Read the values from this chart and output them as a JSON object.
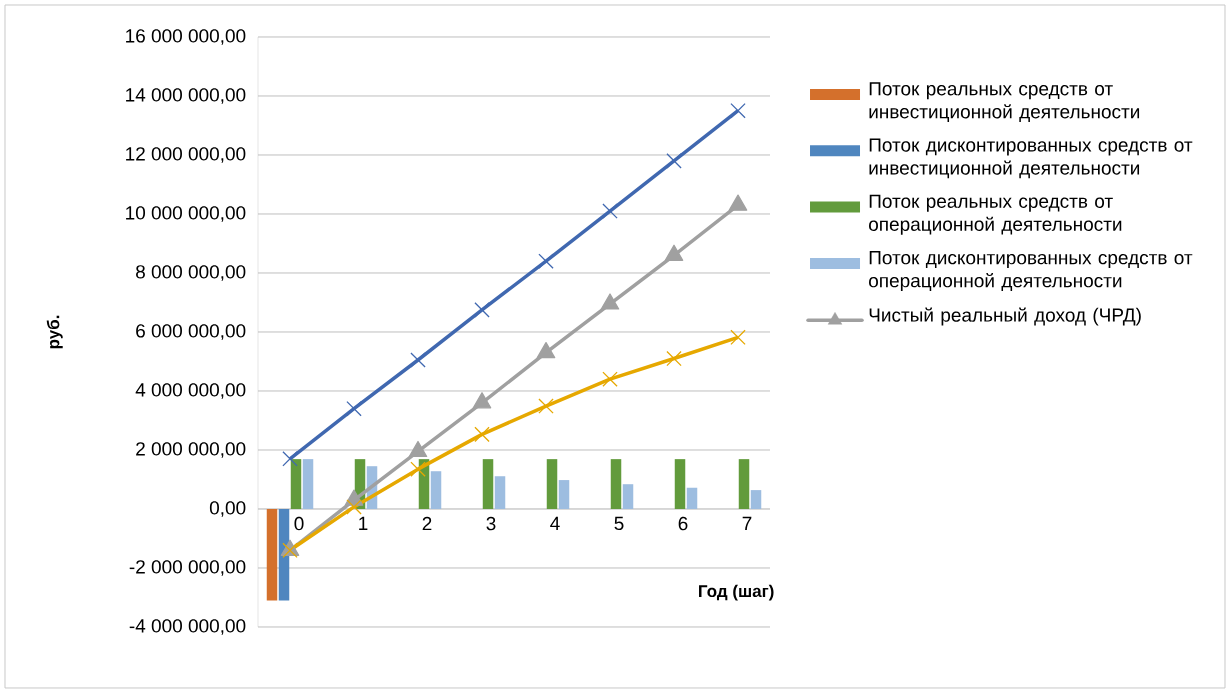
{
  "chart_data": {
    "type": "bar",
    "ylabel": "руб.",
    "xlabel": "Год (шаг)",
    "categories": [
      "0",
      "1",
      "2",
      "3",
      "4",
      "5",
      "6",
      "7"
    ],
    "series": [
      {
        "name": "Поток реальных средств от инвестиционной деятельности",
        "color": "#d4702c",
        "values": [
          -3100000,
          0,
          0,
          0,
          0,
          0,
          0,
          0
        ]
      },
      {
        "name": "Поток дисконтированных средств от инвестиционной деятельности",
        "color": "#4f86bf",
        "values": [
          -3100000,
          0,
          0,
          0,
          0,
          0,
          0,
          0
        ]
      },
      {
        "name": "Поток реальных средств от операционной деятельности",
        "color": "#629b3c",
        "values": [
          1690000,
          1690000,
          1690000,
          1690000,
          1690000,
          1690000,
          1690000,
          1690000
        ]
      },
      {
        "name": "Поток дисконтированных средств от операционной деятельности",
        "color": "#9dbde0",
        "values": [
          1690000,
          1450000,
          1280000,
          1110000,
          980000,
          840000,
          720000,
          640000
        ]
      },
      {
        "type": "line",
        "color": "#4068b0",
        "marker": "cross",
        "values": [
          1700000,
          3400000,
          5050000,
          6750000,
          8400000,
          10100000,
          11800000,
          13500000
        ]
      },
      {
        "name": "Чистый реальный доход (ЧРД)",
        "type": "line",
        "color": "#a0a0a0",
        "marker": "triangle",
        "values": [
          -1400000,
          300000,
          1950000,
          3600000,
          5300000,
          6950000,
          8600000,
          10300000
        ]
      },
      {
        "type": "line",
        "color": "#e6a800",
        "marker": "cross",
        "values": [
          -1400000,
          70000,
          1350000,
          2530000,
          3490000,
          4400000,
          5100000,
          5820000
        ]
      }
    ],
    "ylim": [
      -4000000,
      16000000
    ],
    "yticks": [
      {
        "value": -4000000,
        "label": "-4 000 000,00"
      },
      {
        "value": -2000000,
        "label": "-2 000 000,00"
      },
      {
        "value": 0,
        "label": "0,00"
      },
      {
        "value": 2000000,
        "label": "2 000 000,00"
      },
      {
        "value": 4000000,
        "label": "4 000 000,00"
      },
      {
        "value": 6000000,
        "label": "6 000 000,00"
      },
      {
        "value": 8000000,
        "label": "8 000 000,00"
      },
      {
        "value": 10000000,
        "label": "10 000 000,00"
      },
      {
        "value": 12000000,
        "label": "12 000 000,00"
      },
      {
        "value": 14000000,
        "label": "14 000 000,00"
      },
      {
        "value": 16000000,
        "label": "16 000 000,00"
      }
    ],
    "grid": "y",
    "legend": "right"
  }
}
